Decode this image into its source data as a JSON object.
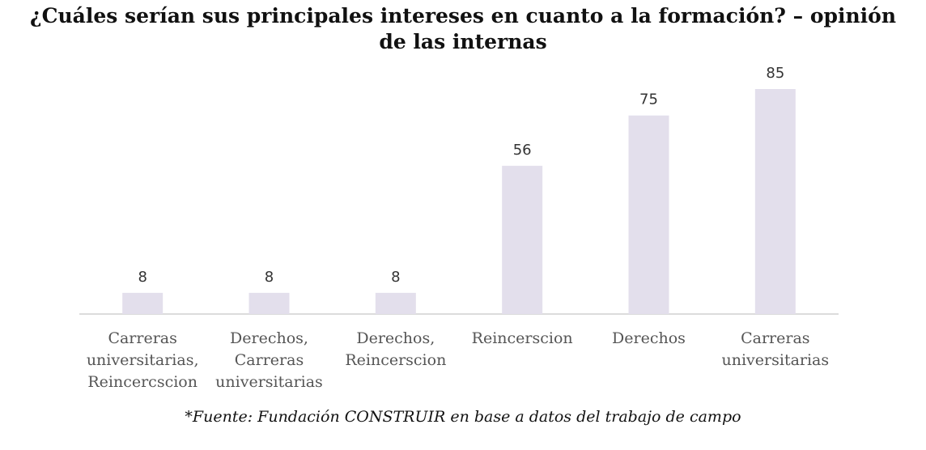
{
  "chart_data": {
    "type": "bar",
    "title_lines": [
      "¿Cuáles serían sus principales intereses en cuanto a la formación? – opinión",
      "de las internas"
    ],
    "categories": [
      [
        "Carreras",
        "universitarias,",
        "Reincercscion"
      ],
      [
        "Derechos,",
        "Carreras",
        "universitarias"
      ],
      [
        "Derechos,",
        "Reincerscion"
      ],
      [
        "Reincerscion"
      ],
      [
        "Derechos"
      ],
      [
        "Carreras",
        "universitarias"
      ]
    ],
    "values": [
      8,
      8,
      8,
      56,
      75,
      85
    ],
    "data_labels": [
      "8",
      "8",
      "8",
      "56",
      "75",
      "85"
    ],
    "bar_color": "#e3dfec",
    "ylim": [
      0,
      85
    ],
    "grid": false,
    "legend": "none",
    "xlabel": "",
    "ylabel": ""
  },
  "footer": {
    "source": "*Fuente: Fundación CONSTRUIR en base a datos del trabajo de campo"
  }
}
